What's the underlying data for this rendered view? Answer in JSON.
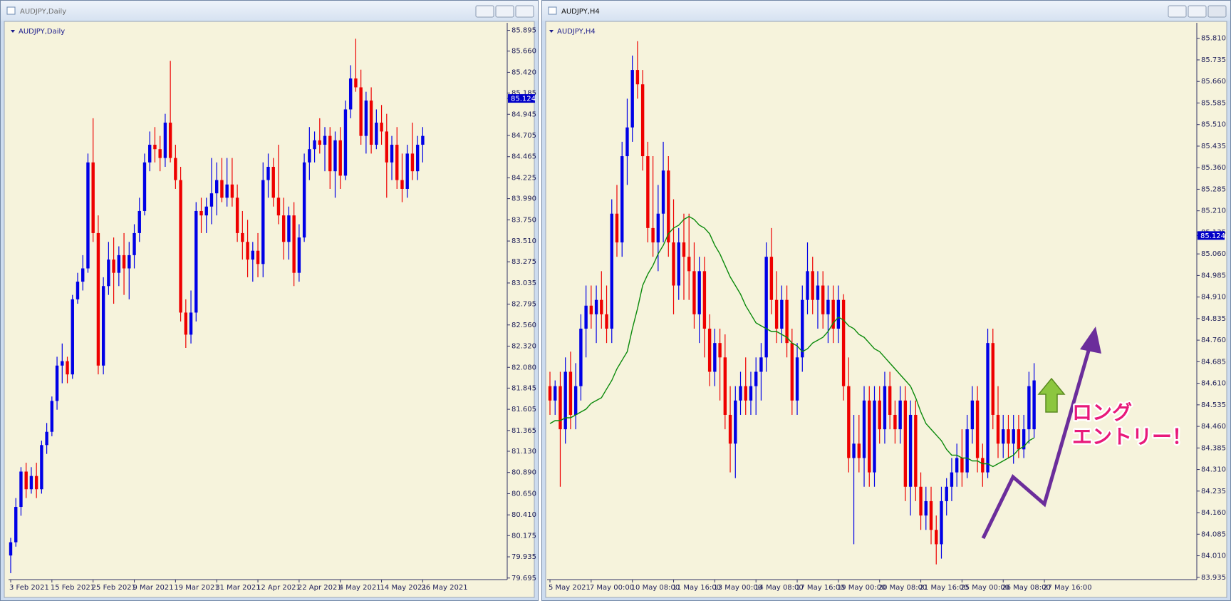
{
  "chart_data": [
    {
      "type": "candlestick",
      "window_title": "AUDJPY,Daily",
      "title": "AUDJPY,Daily",
      "up_color": "#0000e6",
      "down_color": "#ee0000",
      "last_price": 85.124,
      "grid": false,
      "ylim": [
        79.677,
        85.948
      ],
      "yticks": [
        85.895,
        {
          "value": 85.66,
          "label": "85.660"
        },
        {
          "value": 85.42,
          "label": "85.420"
        },
        85.185,
        84.945,
        84.705,
        84.465,
        84.225,
        {
          "value": 83.99,
          "label": "83.990"
        },
        {
          "value": 83.75,
          "label": "83.750"
        },
        {
          "value": 83.51,
          "label": "83.510"
        },
        83.275,
        83.035,
        82.795,
        {
          "value": 82.56,
          "label": "82.560"
        },
        {
          "value": 82.32,
          "label": "82.320"
        },
        {
          "value": 82.08,
          "label": "82.080"
        },
        81.845,
        81.605,
        81.365,
        {
          "value": 81.13,
          "label": "81.130"
        },
        {
          "value": 80.89,
          "label": "80.890"
        },
        {
          "value": 80.65,
          "label": "80.650"
        },
        {
          "value": 80.41,
          "label": "80.410"
        },
        80.175,
        79.935,
        79.695
      ],
      "categories": [
        "3 Feb 2021",
        null,
        null,
        null,
        null,
        null,
        null,
        null,
        "15 Feb 2021",
        null,
        null,
        null,
        null,
        null,
        null,
        null,
        "25 Feb 2021",
        null,
        null,
        null,
        null,
        null,
        null,
        null,
        "9 Mar 2021",
        null,
        null,
        null,
        null,
        null,
        null,
        null,
        "19 Mar 2021",
        null,
        null,
        null,
        null,
        null,
        null,
        null,
        "31 Mar 2021",
        null,
        null,
        null,
        null,
        null,
        null,
        null,
        "12 Apr 2021",
        null,
        null,
        null,
        null,
        null,
        null,
        null,
        "22 Apr 2021",
        null,
        null,
        null,
        null,
        null,
        null,
        null,
        "4 May 2021",
        null,
        null,
        null,
        null,
        null,
        null,
        null,
        "14 May 2021",
        null,
        null,
        null,
        null,
        null,
        null,
        null,
        "26 May 2021"
      ],
      "open": [
        79.95,
        80.1,
        80.5,
        80.9,
        80.7,
        80.85,
        80.7,
        81.2,
        81.35,
        81.7,
        82.1,
        82.15,
        82.0,
        82.85,
        83.05,
        83.2,
        84.4,
        83.6,
        82.1,
        83.0,
        83.3,
        83.15,
        83.35,
        83.2,
        83.35,
        83.6,
        83.85,
        84.4,
        84.6,
        84.55,
        84.45,
        84.85,
        84.45,
        84.2,
        82.7,
        82.45,
        82.7,
        83.85,
        83.8,
        83.9,
        84.05,
        84.2,
        84.0,
        84.15,
        84.0,
        83.6,
        83.5,
        83.3,
        83.4,
        83.25,
        84.2,
        84.35,
        84.0,
        83.8,
        83.5,
        83.8,
        83.15,
        83.55,
        84.4,
        84.55,
        84.65,
        84.6,
        84.7,
        84.3,
        84.65,
        84.25,
        85.0,
        85.35,
        85.25,
        84.7,
        85.1,
        84.6,
        84.85,
        84.75,
        84.4,
        84.6,
        84.2,
        84.1,
        84.5,
        84.3,
        84.6
      ],
      "high": [
        80.15,
        80.6,
        80.95,
        81.0,
        80.95,
        81.0,
        81.25,
        81.45,
        81.75,
        82.2,
        82.35,
        82.2,
        82.9,
        83.15,
        83.35,
        84.5,
        84.9,
        83.8,
        83.1,
        83.5,
        83.55,
        83.45,
        83.6,
        83.5,
        83.7,
        84.0,
        84.5,
        84.75,
        84.8,
        84.7,
        84.95,
        85.55,
        84.6,
        84.35,
        82.85,
        82.95,
        83.95,
        84.0,
        84.0,
        84.45,
        84.4,
        84.45,
        84.45,
        84.45,
        84.15,
        83.85,
        83.75,
        83.5,
        83.6,
        84.4,
        84.5,
        84.45,
        84.6,
        84.0,
        83.9,
        83.95,
        83.7,
        84.5,
        84.8,
        84.75,
        84.9,
        84.8,
        84.8,
        84.75,
        84.8,
        85.1,
        85.5,
        85.8,
        85.45,
        85.2,
        85.25,
        85.0,
        85.05,
        84.95,
        84.7,
        84.8,
        84.5,
        84.6,
        84.85,
        84.7,
        84.8
      ],
      "low": [
        79.75,
        80.05,
        80.4,
        80.6,
        80.65,
        80.6,
        80.65,
        81.1,
        81.3,
        81.6,
        81.9,
        81.9,
        81.95,
        82.8,
        82.95,
        83.15,
        83.5,
        82.0,
        82.0,
        82.9,
        82.8,
        83.0,
        82.9,
        82.85,
        83.2,
        83.5,
        83.8,
        84.3,
        84.4,
        84.3,
        84.35,
        84.4,
        84.1,
        82.6,
        82.3,
        82.35,
        82.6,
        83.6,
        83.6,
        83.7,
        83.8,
        83.95,
        83.9,
        83.9,
        83.5,
        83.3,
        83.1,
        83.05,
        83.1,
        83.1,
        84.0,
        83.9,
        83.7,
        83.3,
        83.3,
        83.0,
        83.05,
        83.5,
        84.2,
        84.4,
        84.5,
        84.3,
        84.1,
        84.0,
        84.1,
        84.2,
        84.9,
        85.2,
        84.6,
        84.5,
        84.5,
        84.55,
        84.6,
        84.0,
        84.2,
        84.1,
        83.95,
        84.0,
        84.2,
        84.2,
        84.4
      ],
      "close": [
        80.1,
        80.5,
        80.9,
        80.7,
        80.85,
        80.7,
        81.2,
        81.35,
        81.7,
        82.1,
        82.15,
        82.0,
        82.85,
        83.05,
        83.2,
        84.4,
        83.6,
        82.1,
        83.0,
        83.3,
        83.15,
        83.35,
        83.2,
        83.35,
        83.6,
        83.85,
        84.4,
        84.6,
        84.55,
        84.45,
        84.85,
        84.45,
        84.2,
        82.7,
        82.45,
        82.7,
        83.85,
        83.8,
        83.9,
        84.05,
        84.2,
        84.0,
        84.15,
        84.0,
        83.6,
        83.5,
        83.3,
        83.4,
        83.25,
        84.2,
        84.35,
        84.0,
        83.8,
        83.5,
        83.8,
        83.15,
        83.55,
        84.4,
        84.55,
        84.65,
        84.6,
        84.7,
        84.3,
        84.65,
        84.25,
        85.0,
        85.35,
        85.25,
        84.7,
        85.1,
        84.6,
        84.85,
        84.75,
        84.4,
        84.6,
        84.2,
        84.1,
        84.5,
        84.3,
        84.6,
        84.7
      ]
    },
    {
      "type": "candlestick",
      "window_title": "AUDJPY,H4",
      "title": "AUDJPY,H4",
      "up_color": "#0000e6",
      "down_color": "#ee0000",
      "last_price": 85.124,
      "grid": false,
      "ylim": [
        83.927,
        85.854
      ],
      "yticks": [
        {
          "value": 85.81,
          "label": "85.810"
        },
        85.735,
        {
          "value": 85.66,
          "label": "85.660"
        },
        85.585,
        {
          "value": 85.51,
          "label": "85.510"
        },
        85.435,
        {
          "value": 85.36,
          "label": "85.360"
        },
        85.285,
        {
          "value": 85.21,
          "label": "85.210"
        },
        85.135,
        {
          "value": 85.06,
          "label": "85.060"
        },
        84.985,
        {
          "value": 84.91,
          "label": "84.910"
        },
        84.835,
        {
          "value": 84.76,
          "label": "84.760"
        },
        84.685,
        {
          "value": 84.61,
          "label": "84.610"
        },
        84.535,
        {
          "value": 84.46,
          "label": "84.460"
        },
        84.385,
        {
          "value": 84.31,
          "label": "84.310"
        },
        84.235,
        {
          "value": 84.16,
          "label": "84.160"
        },
        84.085,
        {
          "value": 84.01,
          "label": "84.010"
        },
        83.935
      ],
      "categories": [
        "5 May 2021",
        null,
        null,
        null,
        null,
        null,
        null,
        null,
        "7 May 00:00",
        null,
        null,
        null,
        null,
        null,
        null,
        null,
        "10 May 08:00",
        null,
        null,
        null,
        null,
        null,
        null,
        null,
        "11 May 16:00",
        null,
        null,
        null,
        null,
        null,
        null,
        null,
        "13 May 00:00",
        null,
        null,
        null,
        null,
        null,
        null,
        null,
        "14 May 08:00",
        null,
        null,
        null,
        null,
        null,
        null,
        null,
        "17 May 16:00",
        null,
        null,
        null,
        null,
        null,
        null,
        null,
        "19 May 00:00",
        null,
        null,
        null,
        null,
        null,
        null,
        null,
        "20 May 08:00",
        null,
        null,
        null,
        null,
        null,
        null,
        null,
        "21 May 16:00",
        null,
        null,
        null,
        null,
        null,
        null,
        null,
        "25 May 00:00",
        null,
        null,
        null,
        null,
        null,
        null,
        null,
        "26 May 08:00",
        null,
        null,
        null,
        null,
        null,
        null,
        null,
        "27 May 16:00"
      ],
      "open": [
        84.6,
        84.55,
        84.6,
        84.45,
        84.65,
        84.5,
        84.6,
        84.8,
        84.88,
        84.85,
        84.9,
        84.85,
        84.8,
        85.2,
        85.1,
        85.4,
        85.5,
        85.7,
        85.65,
        85.4,
        85.15,
        85.1,
        85.2,
        85.35,
        85.1,
        84.95,
        85.1,
        85.05,
        85.0,
        84.85,
        85.0,
        84.8,
        84.65,
        84.75,
        84.7,
        84.5,
        84.4,
        84.55,
        84.6,
        84.55,
        84.6,
        84.65,
        84.7,
        85.05,
        84.9,
        84.8,
        84.9,
        84.75,
        84.55,
        84.7,
        84.9,
        85.0,
        84.9,
        84.95,
        84.85,
        84.9,
        84.8,
        84.9,
        84.6,
        84.35,
        84.4,
        84.35,
        84.55,
        84.3,
        84.55,
        84.45,
        84.6,
        84.5,
        84.45,
        84.55,
        84.25,
        84.5,
        84.25,
        84.15,
        84.2,
        84.1,
        84.05,
        84.2,
        84.25,
        84.3,
        84.35,
        84.3,
        84.45,
        84.55,
        84.35,
        84.3,
        84.75,
        84.5,
        84.4,
        84.45,
        84.4,
        84.45,
        84.38,
        84.45,
        84.45,
        null,
        null
      ],
      "high": [
        84.65,
        84.62,
        84.65,
        84.7,
        84.72,
        84.68,
        84.85,
        84.95,
        84.95,
        84.95,
        85.0,
        84.95,
        85.25,
        85.3,
        85.45,
        85.6,
        85.75,
        85.8,
        85.7,
        85.45,
        85.4,
        85.3,
        85.45,
        85.4,
        85.25,
        85.15,
        85.2,
        85.2,
        85.1,
        85.05,
        85.05,
        84.85,
        84.8,
        84.8,
        84.78,
        84.6,
        84.6,
        84.65,
        84.7,
        84.65,
        84.7,
        84.75,
        85.1,
        85.15,
        85.0,
        84.95,
        84.95,
        84.8,
        84.75,
        84.95,
        85.1,
        85.05,
        85.0,
        85.0,
        84.95,
        84.95,
        84.95,
        84.92,
        84.7,
        84.5,
        84.5,
        84.6,
        84.6,
        84.6,
        84.6,
        84.65,
        84.65,
        84.55,
        84.6,
        84.6,
        84.55,
        84.55,
        84.3,
        84.25,
        84.25,
        84.15,
        84.25,
        84.28,
        84.35,
        84.4,
        84.45,
        84.5,
        84.6,
        84.6,
        84.4,
        84.8,
        84.8,
        84.6,
        84.5,
        84.5,
        84.5,
        84.5,
        84.5,
        84.65,
        84.68,
        null,
        null
      ],
      "low": [
        84.5,
        84.5,
        84.25,
        84.4,
        84.45,
        84.45,
        84.55,
        84.7,
        84.8,
        84.75,
        84.8,
        84.75,
        84.75,
        85.05,
        85.05,
        85.3,
        85.45,
        85.6,
        85.35,
        85.1,
        85.05,
        85.0,
        85.1,
        85.05,
        84.85,
        84.9,
        84.9,
        84.9,
        84.8,
        84.75,
        84.7,
        84.6,
        84.6,
        84.55,
        84.45,
        84.3,
        84.28,
        84.5,
        84.5,
        84.5,
        84.5,
        84.55,
        84.65,
        84.85,
        84.75,
        84.75,
        84.7,
        84.5,
        84.5,
        84.65,
        84.85,
        84.85,
        84.8,
        84.8,
        84.75,
        84.75,
        84.75,
        84.55,
        84.3,
        84.05,
        84.3,
        84.25,
        84.25,
        84.25,
        84.4,
        84.4,
        84.45,
        84.4,
        84.4,
        84.2,
        84.15,
        84.2,
        84.1,
        84.1,
        84.05,
        83.98,
        84.0,
        84.15,
        84.2,
        84.25,
        84.25,
        84.28,
        84.4,
        84.3,
        84.25,
        84.28,
        84.45,
        84.35,
        84.35,
        84.35,
        84.33,
        84.35,
        84.35,
        84.4,
        84.42,
        null,
        null
      ],
      "close": [
        84.55,
        84.6,
        84.45,
        84.65,
        84.5,
        84.6,
        84.8,
        84.88,
        84.85,
        84.9,
        84.85,
        84.8,
        85.2,
        85.1,
        85.4,
        85.5,
        85.7,
        85.65,
        85.4,
        85.15,
        85.1,
        85.2,
        85.35,
        85.1,
        84.95,
        85.1,
        85.05,
        85.0,
        84.85,
        85.0,
        84.8,
        84.65,
        84.75,
        84.7,
        84.5,
        84.4,
        84.55,
        84.6,
        84.55,
        84.6,
        84.65,
        84.7,
        85.05,
        84.9,
        84.8,
        84.9,
        84.75,
        84.55,
        84.7,
        84.9,
        85.0,
        84.9,
        84.95,
        84.85,
        84.9,
        84.8,
        84.9,
        84.6,
        84.35,
        84.4,
        84.35,
        84.55,
        84.3,
        84.55,
        84.45,
        84.6,
        84.5,
        84.45,
        84.55,
        84.25,
        84.5,
        84.25,
        84.15,
        84.2,
        84.1,
        84.05,
        84.2,
        84.25,
        84.3,
        84.35,
        84.3,
        84.45,
        84.55,
        84.35,
        84.3,
        84.75,
        84.5,
        84.4,
        84.45,
        84.4,
        84.45,
        84.38,
        84.45,
        84.6,
        84.62,
        null,
        null
      ],
      "moving_average": {
        "color": "#0b8a0b",
        "values": [
          84.47,
          84.48,
          84.48,
          84.49,
          84.49,
          84.5,
          84.51,
          84.52,
          84.54,
          84.55,
          84.56,
          84.59,
          84.62,
          84.66,
          84.69,
          84.72,
          84.8,
          84.87,
          84.95,
          84.99,
          85.02,
          85.06,
          85.09,
          85.13,
          85.15,
          85.16,
          85.18,
          85.19,
          85.18,
          85.16,
          85.15,
          85.13,
          85.09,
          85.06,
          85.02,
          84.98,
          84.95,
          84.92,
          84.88,
          84.85,
          84.82,
          84.81,
          84.8,
          84.79,
          84.79,
          84.78,
          84.77,
          84.75,
          84.74,
          84.72,
          84.73,
          84.75,
          84.76,
          84.77,
          84.79,
          84.82,
          84.84,
          84.83,
          84.81,
          84.8,
          84.78,
          84.77,
          84.75,
          84.73,
          84.72,
          84.7,
          84.68,
          84.66,
          84.64,
          84.62,
          84.6,
          84.56,
          84.51,
          84.47,
          84.45,
          84.43,
          84.41,
          84.38,
          84.36,
          84.36,
          84.35,
          84.35,
          84.34,
          84.34,
          84.33,
          84.33,
          84.32,
          84.33,
          84.34,
          84.35,
          84.36,
          84.38,
          84.39,
          84.41,
          84.42,
          null,
          null
        ]
      },
      "annotations": [
        "ロング",
        "エントリー！"
      ]
    }
  ]
}
